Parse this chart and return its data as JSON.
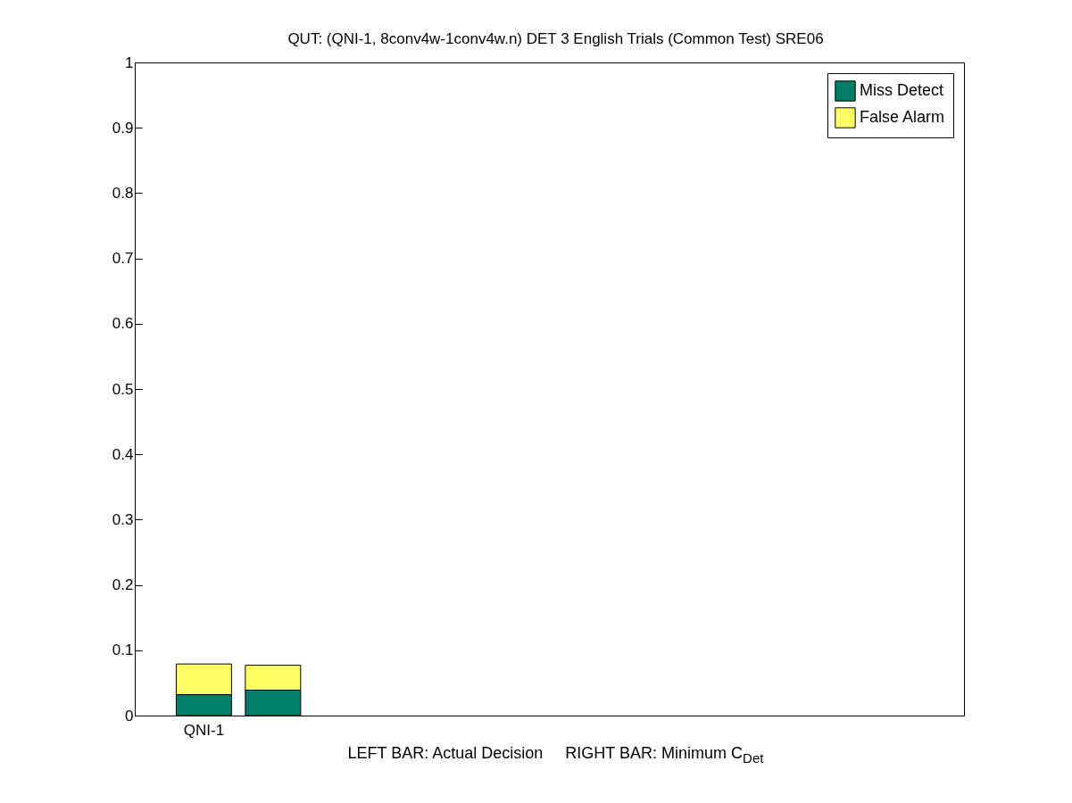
{
  "chart_data": {
    "type": "bar",
    "title": "QUT: (QNI-1, 8conv4w-1conv4w.n) DET 3 English Trials (Common Test) SRE06",
    "xlabel": "LEFT BAR: Actual Decision     RIGHT BAR: Minimum C$_{Det}$",
    "categories": [
      "QNI-1",
      null,
      null,
      null,
      null,
      null,
      null,
      null,
      null,
      null,
      null
    ],
    "series": [
      {
        "name": "Miss Detect",
        "color": "#007f66",
        "values": [
          0.032,
          0.039,
          null,
          null,
          null,
          null,
          null,
          null,
          null,
          null,
          null
        ]
      },
      {
        "name": "False Alarm",
        "color": "#ffff66",
        "values": [
          0.047,
          0.038,
          null,
          null,
          null,
          null,
          null,
          null,
          null,
          null,
          null
        ]
      }
    ],
    "stacked": true,
    "ylim": [
      0,
      1
    ],
    "yticks": [
      0,
      0.1,
      0.2,
      0.3,
      0.4,
      0.5,
      0.6,
      0.7,
      0.8,
      0.9,
      1
    ],
    "grid": false,
    "legend": "top right"
  }
}
